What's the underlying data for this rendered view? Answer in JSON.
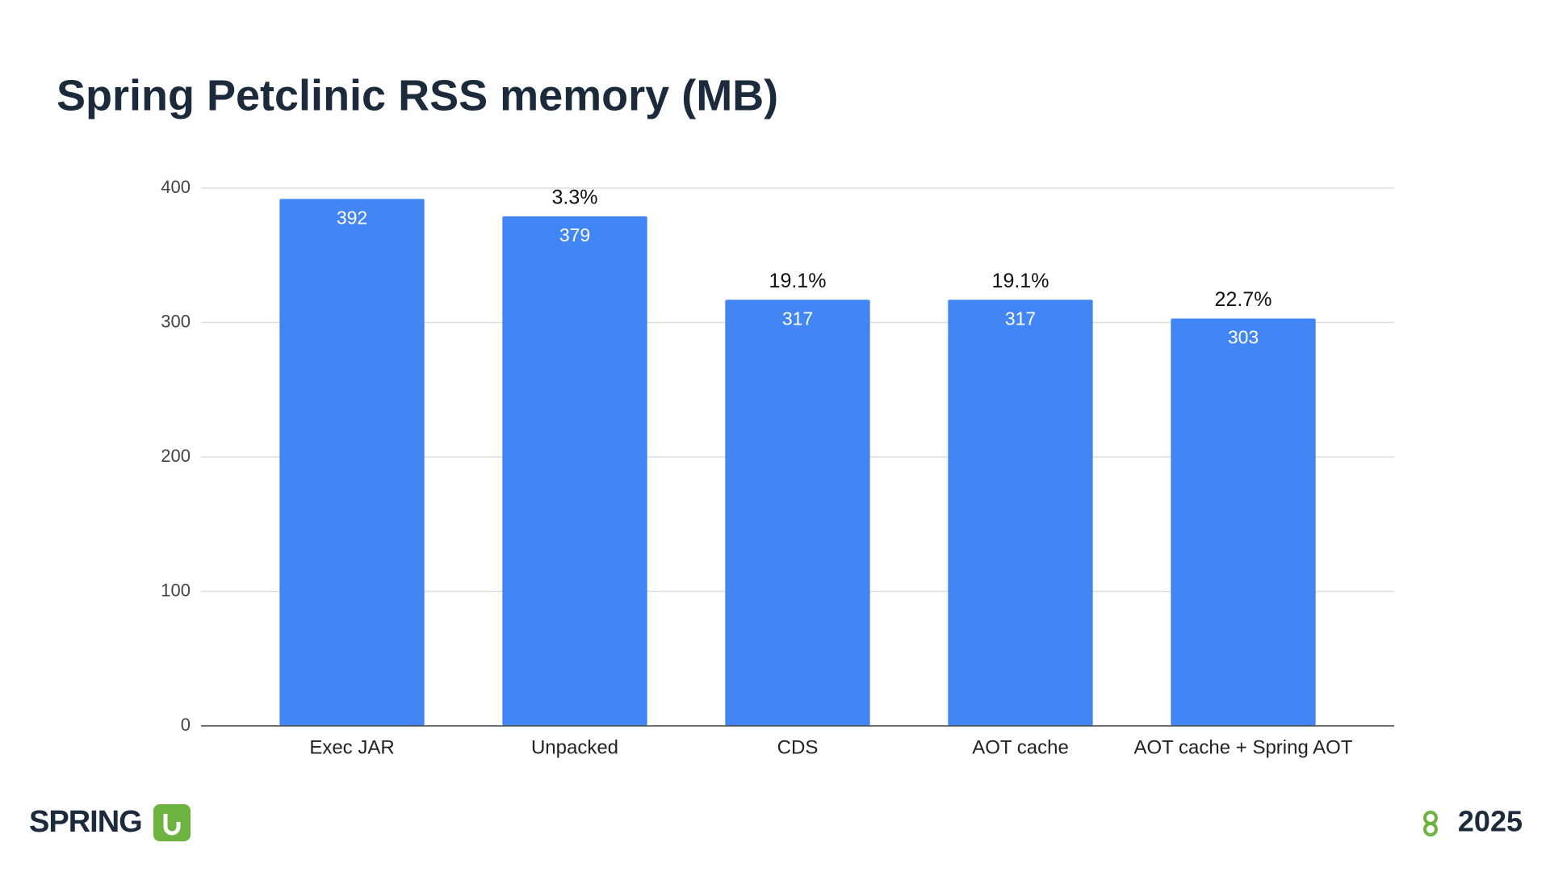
{
  "chart_data": {
    "type": "bar",
    "title": "Spring Petclinic RSS memory (MB)",
    "categories": [
      "Exec JAR",
      "Unpacked",
      "CDS",
      "AOT cache",
      "AOT cache + Spring AOT"
    ],
    "values": [
      392,
      379,
      317,
      317,
      303
    ],
    "annotations": [
      null,
      "3.3%",
      "19.1%",
      "19.1%",
      "22.7%"
    ],
    "color": "#4285f4",
    "ylim": [
      0,
      400
    ],
    "yticks": [
      0,
      100,
      200,
      300,
      400
    ],
    "grid": true
  },
  "footer": {
    "brand": "SPRING",
    "event": "2025"
  }
}
